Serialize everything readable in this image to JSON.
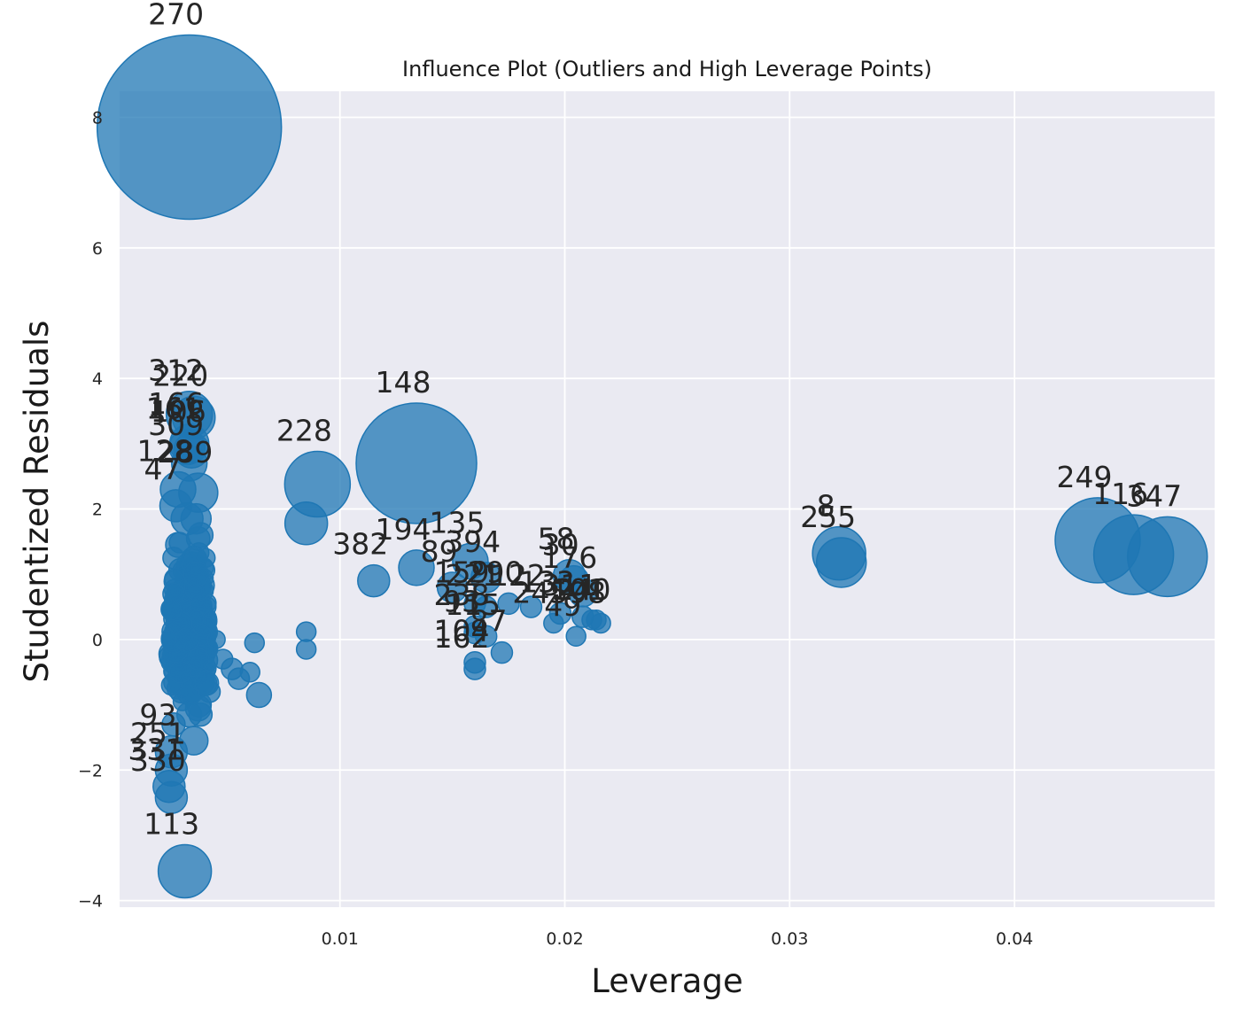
{
  "chart_data": {
    "type": "scatter",
    "title": "Influence Plot (Outliers and High Leverage Points)",
    "xlabel": "Leverage",
    "ylabel": "Studentized Residuals",
    "xlim": [
      0.0002,
      0.0489
    ],
    "ylim": [
      -4.1,
      8.4
    ],
    "xticks": [
      0.01,
      0.02,
      0.03,
      0.04
    ],
    "xtick_labels": [
      "0.01",
      "0.02",
      "0.03",
      "0.04"
    ],
    "yticks": [
      -4,
      -2,
      0,
      2,
      4,
      6,
      8
    ],
    "ytick_labels": [
      "−4",
      "−2",
      "0",
      "2",
      "4",
      "6",
      "8"
    ],
    "grid": true,
    "background": "#eaeaf2",
    "marker_color": "#1f77b4",
    "marker_alpha": 0.75,
    "size_meaning": "Cook's distance",
    "labeled_points": [
      {
        "label": "270",
        "x": 0.0033,
        "y": 7.85,
        "r": 104
      },
      {
        "label": "312",
        "x": 0.0033,
        "y": 3.45,
        "r": 26
      },
      {
        "label": "220",
        "x": 0.0035,
        "y": 3.4,
        "r": 24
      },
      {
        "label": "166",
        "x": 0.0033,
        "y": 3.0,
        "r": 22
      },
      {
        "label": "161",
        "x": 0.0032,
        "y": 2.95,
        "r": 20
      },
      {
        "label": "106",
        "x": 0.0034,
        "y": 2.9,
        "r": 20
      },
      {
        "label": "309",
        "x": 0.0033,
        "y": 2.7,
        "r": 20
      },
      {
        "label": "128",
        "x": 0.0028,
        "y": 2.3,
        "r": 20
      },
      {
        "label": "289",
        "x": 0.0037,
        "y": 2.25,
        "r": 22
      },
      {
        "label": "47",
        "x": 0.0027,
        "y": 2.05,
        "r": 18
      },
      {
        "label": "148",
        "x": 0.0134,
        "y": 2.7,
        "r": 68
      },
      {
        "label": "228",
        "x": 0.009,
        "y": 2.38,
        "r": 37
      },
      {
        "label": "382",
        "x": 0.0115,
        "y": 0.9,
        "r": 18
      },
      {
        "label": "194",
        "x": 0.0134,
        "y": 1.1,
        "r": 20
      },
      {
        "label": "135",
        "x": 0.0158,
        "y": 1.2,
        "r": 20
      },
      {
        "label": "89",
        "x": 0.015,
        "y": 0.8,
        "r": 17
      },
      {
        "label": "394",
        "x": 0.0165,
        "y": 0.95,
        "r": 17
      },
      {
        "label": "58",
        "x": 0.0202,
        "y": 0.98,
        "r": 18
      },
      {
        "label": "30",
        "x": 0.0204,
        "y": 0.9,
        "r": 17
      },
      {
        "label": "176",
        "x": 0.0208,
        "y": 0.72,
        "r": 16
      },
      {
        "label": "159",
        "x": 0.016,
        "y": 0.55,
        "r": 12
      },
      {
        "label": "221",
        "x": 0.0165,
        "y": 0.5,
        "r": 12
      },
      {
        "label": "290",
        "x": 0.0175,
        "y": 0.55,
        "r": 12
      },
      {
        "label": "122",
        "x": 0.0185,
        "y": 0.5,
        "r": 12
      },
      {
        "label": "133",
        "x": 0.0198,
        "y": 0.4,
        "r": 12
      },
      {
        "label": "311",
        "x": 0.0208,
        "y": 0.35,
        "r": 12
      },
      {
        "label": "101",
        "x": 0.0212,
        "y": 0.3,
        "r": 11
      },
      {
        "label": "240",
        "x": 0.0214,
        "y": 0.3,
        "r": 11
      },
      {
        "label": "98",
        "x": 0.0216,
        "y": 0.25,
        "r": 11
      },
      {
        "label": "238",
        "x": 0.016,
        "y": 0.2,
        "r": 12
      },
      {
        "label": "93",
        "x": 0.016,
        "y": 0.1,
        "r": 12
      },
      {
        "label": "115",
        "x": 0.0165,
        "y": 0.05,
        "r": 12
      },
      {
        "label": "87",
        "x": 0.0172,
        "y": -0.2,
        "r": 12
      },
      {
        "label": "245",
        "x": 0.0195,
        "y": 0.25,
        "r": 11
      },
      {
        "label": "49",
        "x": 0.0205,
        "y": 0.05,
        "r": 11
      },
      {
        "label": "104",
        "x": 0.016,
        "y": -0.35,
        "r": 12
      },
      {
        "label": "162",
        "x": 0.016,
        "y": -0.45,
        "r": 12
      },
      {
        "label": "8",
        "x": 0.0322,
        "y": 1.32,
        "r": 30
      },
      {
        "label": "255",
        "x": 0.0323,
        "y": 1.18,
        "r": 28
      },
      {
        "label": "249",
        "x": 0.0437,
        "y": 1.52,
        "r": 48
      },
      {
        "label": "116",
        "x": 0.0453,
        "y": 1.3,
        "r": 45
      },
      {
        "label": "347",
        "x": 0.0468,
        "y": 1.27,
        "r": 45
      },
      {
        "label": "93",
        "x": 0.0025,
        "y": -1.72,
        "r": 18
      },
      {
        "label": "251",
        "x": 0.0025,
        "y": -2.0,
        "r": 18
      },
      {
        "label": "331",
        "x": 0.0024,
        "y": -2.25,
        "r": 18
      },
      {
        "label": "330",
        "x": 0.0025,
        "y": -2.42,
        "r": 18
      },
      {
        "label": "113",
        "x": 0.0031,
        "y": -3.55,
        "r": 30
      }
    ],
    "unlabeled_points": [
      {
        "x": 0.0085,
        "y": 1.78,
        "r": 24
      },
      {
        "x": 0.0085,
        "y": 0.12,
        "r": 11
      },
      {
        "x": 0.0085,
        "y": -0.15,
        "r": 11
      },
      {
        "x": 0.0062,
        "y": -0.05,
        "r": 11
      },
      {
        "x": 0.0064,
        "y": -0.85,
        "r": 14
      },
      {
        "x": 0.0052,
        "y": -0.45,
        "r": 12
      },
      {
        "x": 0.0055,
        "y": -0.6,
        "r": 12
      },
      {
        "x": 0.006,
        "y": -0.5,
        "r": 11
      },
      {
        "x": 0.0048,
        "y": -0.3,
        "r": 11
      },
      {
        "x": 0.0045,
        "y": 0.0,
        "r": 10
      },
      {
        "x": 0.0042,
        "y": -0.8,
        "r": 12
      },
      {
        "x": 0.0038,
        "y": 1.6,
        "r": 14
      },
      {
        "x": 0.0035,
        "y": 1.2,
        "r": 14
      },
      {
        "x": 0.0028,
        "y": 1.45,
        "r": 14
      },
      {
        "x": 0.0026,
        "y": 1.25,
        "r": 12
      },
      {
        "x": 0.0026,
        "y": 0.7,
        "r": 12
      },
      {
        "x": 0.0025,
        "y": 0.45,
        "r": 11
      },
      {
        "x": 0.0025,
        "y": -0.7,
        "r": 11
      },
      {
        "x": 0.0026,
        "y": -1.3,
        "r": 13
      },
      {
        "x": 0.0033,
        "y": -1.15,
        "r": 14
      },
      {
        "x": 0.0035,
        "y": -1.55,
        "r": 16
      },
      {
        "x": 0.0038,
        "y": -1.15,
        "r": 13
      },
      {
        "x": 0.0032,
        "y": 1.85,
        "r": 18
      },
      {
        "x": 0.0036,
        "y": 1.85,
        "r": 17
      },
      {
        "x": 0.0036,
        "y": 1.0,
        "r": 14
      },
      {
        "x": 0.0032,
        "y": 0.0,
        "r": 13
      },
      {
        "x": 0.0029,
        "y": -0.5,
        "r": 12
      },
      {
        "x": 0.0037,
        "y": -0.3,
        "r": 12
      }
    ],
    "dense_cluster": {
      "x_range": [
        0.0025,
        0.0041
      ],
      "y_range": [
        -1.3,
        1.8
      ]
    }
  }
}
